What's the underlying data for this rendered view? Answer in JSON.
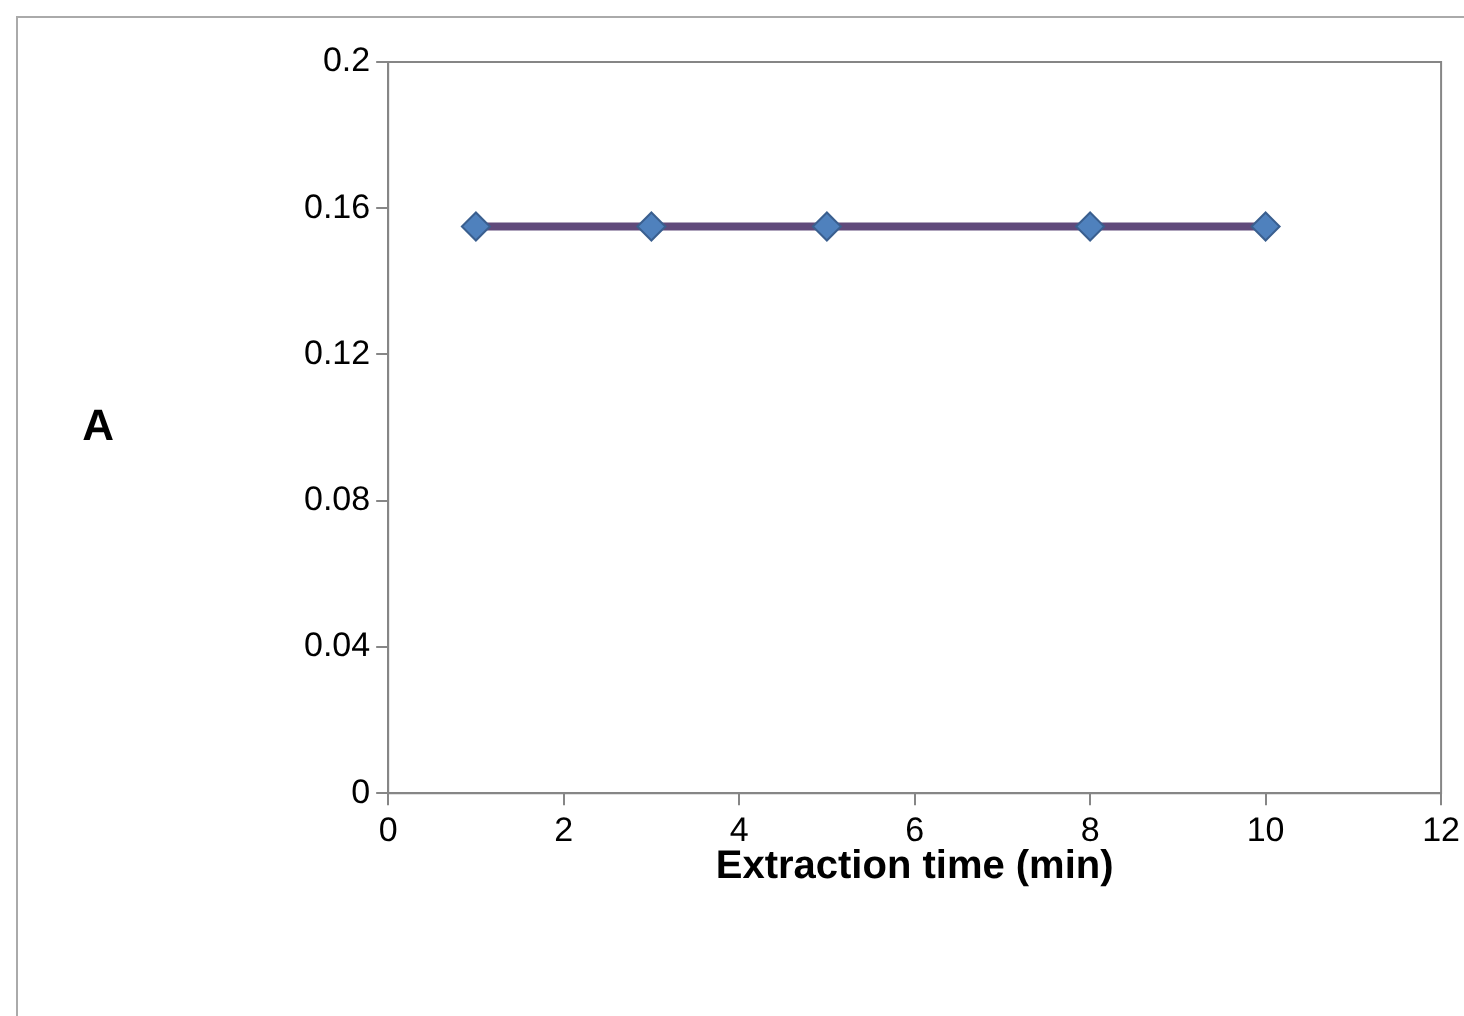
{
  "chart_data": {
    "type": "line",
    "xlabel": "Extraction time (min)",
    "ylabel": "A",
    "x": [
      1,
      3,
      5,
      8,
      10
    ],
    "series": [
      {
        "color": "#604a7b",
        "values": [
          0.155,
          0.155,
          0.155,
          0.155,
          0.155
        ]
      }
    ],
    "xlim": [
      0,
      12
    ],
    "xticks": [
      0,
      2,
      4,
      6,
      8,
      10,
      12
    ],
    "ylim": [
      0,
      0.2
    ],
    "yticks": [
      0,
      0.04,
      0.08,
      0.12,
      0.16,
      0.2
    ],
    "grid": false,
    "legend": false,
    "marker": "diamond",
    "line_style": "solid"
  }
}
